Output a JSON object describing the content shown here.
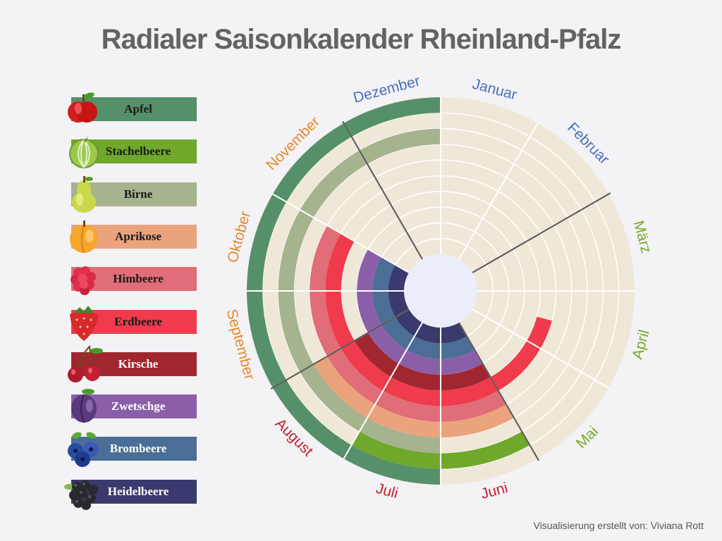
{
  "title": "Radialer Saisonkalender Rheinland-Pfalz",
  "footer": "Visualisierung erstellt von: Viviana Rott",
  "colors": {
    "background": "#f3f2f5",
    "ring_bg": "#efe7d8",
    "center": "#ebeefa",
    "divider": "#555555"
  },
  "chart_data": {
    "type": "radial-calendar",
    "title": "Radialer Saisonkalender Rheinland-Pfalz",
    "months": [
      {
        "name": "Januar",
        "color": "#4a6fc0"
      },
      {
        "name": "Februar",
        "color": "#4a6fc0"
      },
      {
        "name": "März",
        "color": "#7aa822"
      },
      {
        "name": "April",
        "color": "#7aa822"
      },
      {
        "name": "Mai",
        "color": "#7aa822"
      },
      {
        "name": "Juni",
        "color": "#c41e2a"
      },
      {
        "name": "Juli",
        "color": "#c41e2a"
      },
      {
        "name": "August",
        "color": "#c41e2a"
      },
      {
        "name": "September",
        "color": "#e5892a"
      },
      {
        "name": "Oktober",
        "color": "#e5892a"
      },
      {
        "name": "November",
        "color": "#e5892a"
      },
      {
        "name": "Dezember",
        "color": "#4a6fc0"
      }
    ],
    "series": [
      {
        "name": "Apfel",
        "color": "#56906a",
        "label_color": "dark",
        "icon": "apple-icon",
        "start_month": 7,
        "end_month": 12
      },
      {
        "name": "Stachelbeere",
        "color": "#6fa82a",
        "label_color": "dark",
        "icon": "gooseberry-icon",
        "start_month": 6,
        "end_month": 7
      },
      {
        "name": "Birne",
        "color": "#a5b38e",
        "label_color": "dark",
        "icon": "pear-icon",
        "start_month": 7,
        "end_month": 12
      },
      {
        "name": "Aprikose",
        "color": "#eba37e",
        "label_color": "dark",
        "icon": "apricot-icon",
        "start_month": 6,
        "end_month": 8
      },
      {
        "name": "Himbeere",
        "color": "#e06d77",
        "label_color": "dark",
        "icon": "raspberry-icon",
        "start_month": 6,
        "end_month": 10
      },
      {
        "name": "Erdbeere",
        "color": "#ef3b4b",
        "label_color": "dark",
        "icon": "strawberry-icon",
        "start_month": 4.5,
        "end_month": 10
      },
      {
        "name": "Kirsche",
        "color": "#a02730",
        "label_color": "light",
        "icon": "cherry-icon",
        "start_month": 6,
        "end_month": 8
      },
      {
        "name": "Zwetschge",
        "color": "#8a5fa8",
        "label_color": "light",
        "icon": "plum-icon",
        "start_month": 6,
        "end_month": 10
      },
      {
        "name": "Brombeere",
        "color": "#4a6e95",
        "label_color": "light",
        "icon": "blackberry-icon",
        "start_month": 6,
        "end_month": 10
      },
      {
        "name": "Heidelbeere",
        "color": "#3b3a6e",
        "label_color": "light",
        "icon": "blueberry-icon",
        "start_month": 6,
        "end_month": 10
      }
    ]
  }
}
